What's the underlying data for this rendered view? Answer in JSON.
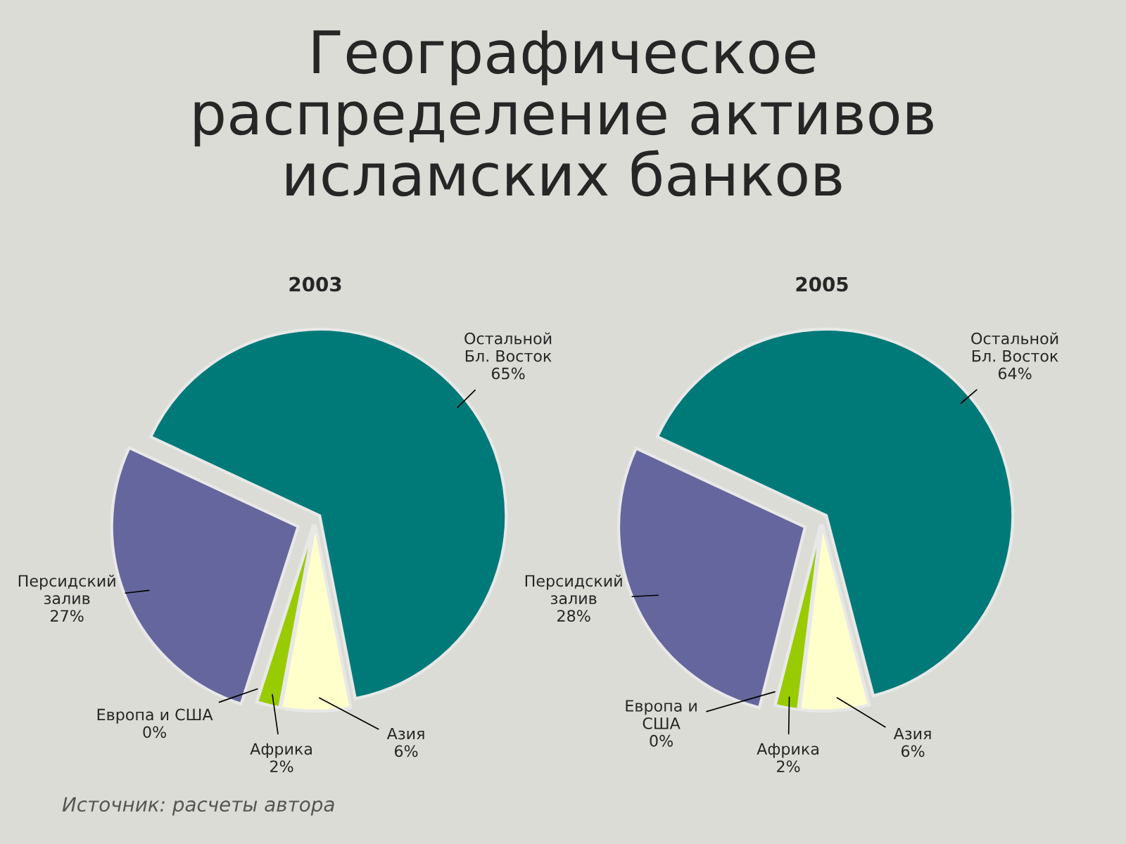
{
  "chart_data": [
    {
      "type": "pie",
      "title": "2003",
      "categories": [
        "Остальной\nБл. Восток",
        "Азия",
        "Африка",
        "Европа и США",
        "Персидский\nзалив"
      ],
      "values": [
        65,
        6,
        2,
        0,
        27
      ],
      "value_labels": [
        "65%",
        "6%",
        "2%",
        "0%",
        "27%"
      ],
      "colors": [
        "#007a78",
        "#ffffcc",
        "#99cc00",
        "#c0c0c0",
        "#66669e"
      ],
      "annotations": [
        "Географическое\nраспределение активов\nисламских банков",
        "Источник: расчеты автора"
      ]
    },
    {
      "type": "pie",
      "title": "2005",
      "categories": [
        "Остальной\nБл. Восток",
        "Азия",
        "Африка",
        "Европа и\nСША",
        "Персидский\nзалив"
      ],
      "values": [
        64,
        6,
        2,
        0,
        28
      ],
      "value_labels": [
        "64%",
        "6%",
        "2%",
        "0%",
        "28%"
      ],
      "colors": [
        "#007a78",
        "#ffffcc",
        "#99cc00",
        "#c0c0c0",
        "#66669e"
      ]
    }
  ]
}
